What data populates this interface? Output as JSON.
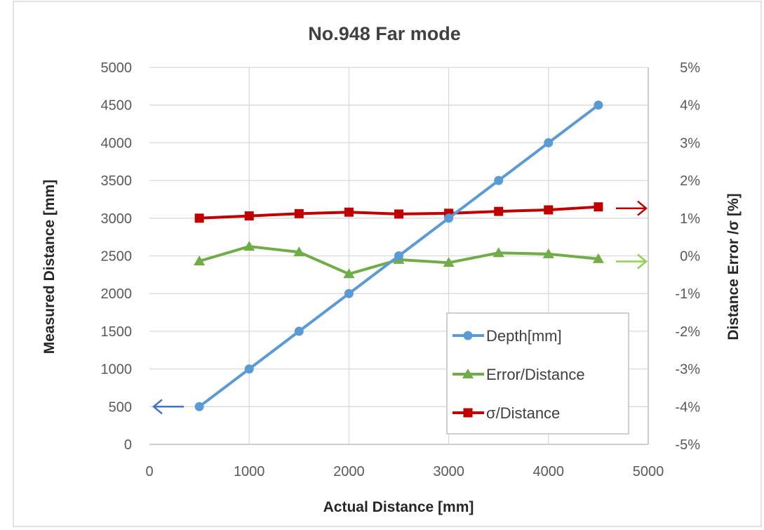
{
  "chart_data": {
    "type": "line",
    "title": "No.948  Far mode",
    "xlabel": "Actual Distance [mm]",
    "ylabel": "Measured Distance [mm]",
    "y2label": "Distance Error /σ [%]",
    "xlim": [
      0,
      5000
    ],
    "ylim": [
      0,
      5000
    ],
    "y2lim": [
      -5,
      5
    ],
    "x_ticks": [
      "0",
      "1000",
      "2000",
      "3000",
      "4000",
      "5000"
    ],
    "y_ticks": [
      "0",
      "500",
      "1000",
      "1500",
      "2000",
      "2500",
      "3000",
      "3500",
      "4000",
      "4500",
      "5000"
    ],
    "y2_ticks": [
      "-5%",
      "-4%",
      "-3%",
      "-2%",
      "-1%",
      "0%",
      "1%",
      "2%",
      "3%",
      "4%",
      "5%"
    ],
    "grid": true,
    "legend_position": "bottom-right",
    "x": [
      500,
      1000,
      1500,
      2000,
      2500,
      3000,
      3500,
      4000,
      4500
    ],
    "series": [
      {
        "name": "Depth[mm]",
        "axis": "left",
        "marker": "circle",
        "color": "#5b9bd5",
        "values": [
          500,
          1000,
          1500,
          2000,
          2500,
          3000,
          3500,
          4000,
          4500
        ]
      },
      {
        "name": "Error/Distance",
        "axis": "right",
        "marker": "triangle",
        "color": "#70ad47",
        "values": [
          -0.14,
          0.25,
          0.1,
          -0.48,
          -0.1,
          -0.18,
          0.08,
          0.05,
          -0.08
        ]
      },
      {
        "name": "σ/Distance",
        "axis": "right",
        "marker": "square",
        "color": "#c00000",
        "values": [
          1.0,
          1.06,
          1.12,
          1.16,
          1.11,
          1.13,
          1.18,
          1.22,
          1.3
        ]
      }
    ],
    "annotations": [
      {
        "type": "arrow",
        "points_to": "left-axis",
        "series": "Depth[mm]",
        "at_value": 500,
        "color": "#4472c4"
      },
      {
        "type": "arrow",
        "points_to": "right-axis",
        "series": "σ/Distance",
        "at_value": 1.3,
        "color": "#c00000"
      },
      {
        "type": "arrow",
        "points_to": "right-axis",
        "series": "Error/Distance",
        "at_value": 0,
        "color": "#92d050"
      }
    ]
  }
}
